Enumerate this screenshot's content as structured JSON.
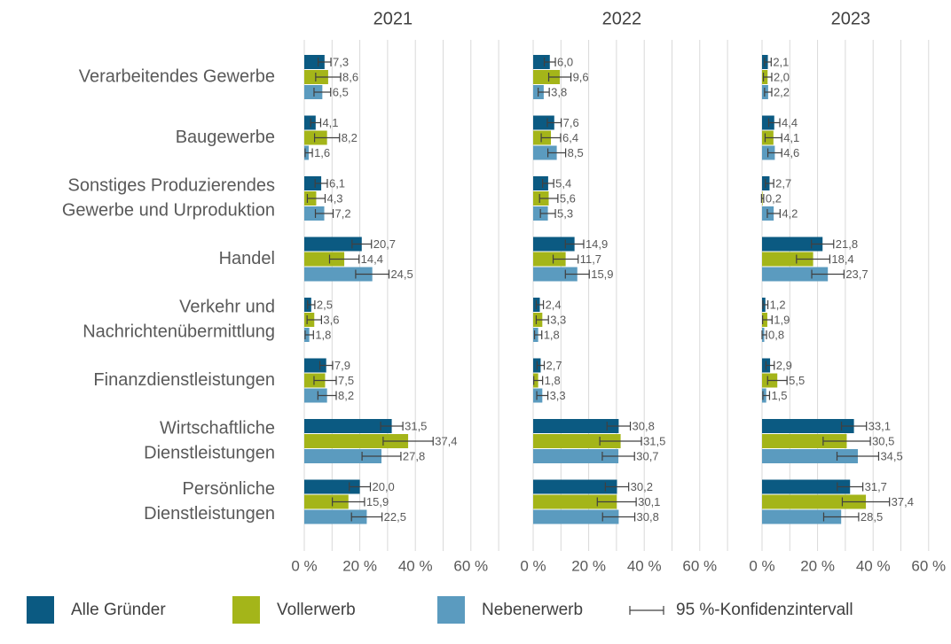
{
  "chart_data": {
    "type": "bar",
    "orientation": "horizontal",
    "categories": [
      [
        "Verarbeitendes Gewerbe"
      ],
      [
        "Baugewerbe"
      ],
      [
        "Sonstiges Produzierendes",
        "Gewerbe und Urproduktion"
      ],
      [
        "Handel"
      ],
      [
        "Verkehr und",
        "Nachrichtenübermittlung"
      ],
      [
        "Finanzdienstleistungen"
      ],
      [
        "Wirtschaftliche",
        "Dienstleistungen"
      ],
      [
        "Persönliche",
        "Dienstleistungen"
      ]
    ],
    "series": [
      {
        "name": "Alle Gründer",
        "color": "#0b5a82"
      },
      {
        "name": "Vollerwerb",
        "color": "#a4b519"
      },
      {
        "name": "Nebenerwerb",
        "color": "#5b9bbf"
      }
    ],
    "error_label": "95 %-Konfidenzintervall",
    "xlim": [
      0,
      70
    ],
    "xticks": [
      {
        "value": 0,
        "label": "0 %"
      },
      {
        "value": 20,
        "label": "20 %"
      },
      {
        "value": 40,
        "label": "40 %"
      },
      {
        "value": 60,
        "label": "60 %"
      }
    ],
    "xgrid": [
      0,
      10,
      20,
      30,
      40,
      50,
      60,
      70
    ],
    "panels": [
      {
        "title": "2021",
        "series": [
          {
            "values": [
              7.3,
              4.1,
              6.1,
              20.7,
              2.5,
              7.9,
              31.5,
              20.0
            ],
            "value_labels": [
              "7,3",
              "4,1",
              "6,1",
              "20,7",
              "2,5",
              "7,9",
              "31,5",
              "20,0"
            ],
            "errors": [
              2.3,
              1.8,
              2.2,
              3.5,
              1.3,
              2.3,
              4.0,
              3.8
            ]
          },
          {
            "values": [
              8.6,
              8.2,
              4.3,
              14.4,
              3.6,
              7.5,
              37.4,
              15.9
            ],
            "value_labels": [
              "8,6",
              "8,2",
              "4,3",
              "14,4",
              "3,6",
              "7,5",
              "37,4",
              "15,9"
            ],
            "errors": [
              4.5,
              4.5,
              3.2,
              5.3,
              2.6,
              4.0,
              9.0,
              5.8
            ]
          },
          {
            "values": [
              6.5,
              1.6,
              7.2,
              24.5,
              1.8,
              8.2,
              27.8,
              22.5
            ],
            "value_labels": [
              "6,5",
              "1,6",
              "7,2",
              "24,5",
              "1,8",
              "8,2",
              "27,8",
              "22,5"
            ],
            "errors": [
              3.0,
              1.3,
              3.2,
              6.0,
              1.5,
              3.3,
              7.0,
              5.5
            ]
          }
        ]
      },
      {
        "title": "2022",
        "series": [
          {
            "values": [
              6.0,
              7.6,
              5.4,
              14.9,
              2.4,
              2.7,
              30.8,
              30.2
            ],
            "value_labels": [
              "6,0",
              "7,6",
              "5,4",
              "14,9",
              "2,4",
              "2,7",
              "30,8",
              "30,2"
            ],
            "errors": [
              2.0,
              2.5,
              2.0,
              3.3,
              1.3,
              1.3,
              4.2,
              4.2
            ]
          },
          {
            "values": [
              9.6,
              6.4,
              5.6,
              11.7,
              3.3,
              1.8,
              31.5,
              30.1
            ],
            "value_labels": [
              "9,6",
              "6,4",
              "5,6",
              "11,7",
              "3,3",
              "1,8",
              "31,5",
              "30,1"
            ],
            "errors": [
              4.0,
              3.5,
              3.3,
              4.5,
              2.2,
              1.6,
              7.5,
              7.0
            ]
          },
          {
            "values": [
              3.8,
              8.5,
              5.3,
              15.9,
              1.8,
              3.3,
              30.7,
              30.8
            ],
            "value_labels": [
              "3,8",
              "8,5",
              "5,3",
              "15,9",
              "1,8",
              "3,3",
              "30,7",
              "30,8"
            ],
            "errors": [
              2.0,
              3.2,
              2.7,
              4.3,
              1.3,
              2.0,
              5.8,
              5.8
            ]
          }
        ]
      },
      {
        "title": "2023",
        "series": [
          {
            "values": [
              2.1,
              4.4,
              2.7,
              21.8,
              1.2,
              2.9,
              33.1,
              31.7
            ],
            "value_labels": [
              "2,1",
              "4,4",
              "2,7",
              "21,8",
              "1,2",
              "2,9",
              "33,1",
              "31,7"
            ],
            "errors": [
              1.2,
              2.0,
              1.5,
              4.0,
              0.9,
              1.5,
              4.5,
              4.6
            ]
          },
          {
            "values": [
              2.0,
              4.1,
              0.2,
              18.4,
              1.9,
              5.5,
              30.5,
              37.4
            ],
            "value_labels": [
              "2,0",
              "4,1",
              "0,2",
              "18,4",
              "1,9",
              "5,5",
              "30,5",
              "37,4"
            ],
            "errors": [
              1.5,
              3.0,
              0.4,
              6.0,
              1.7,
              3.5,
              8.5,
              8.5
            ]
          },
          {
            "values": [
              2.2,
              4.6,
              4.2,
              23.7,
              0.8,
              1.5,
              34.5,
              28.5
            ],
            "value_labels": [
              "2,2",
              "4,6",
              "4,2",
              "23,7",
              "0,8",
              "1,5",
              "34,5",
              "28,5"
            ],
            "errors": [
              1.3,
              2.5,
              2.3,
              5.8,
              0.8,
              1.2,
              7.5,
              6.3
            ]
          }
        ]
      }
    ]
  }
}
